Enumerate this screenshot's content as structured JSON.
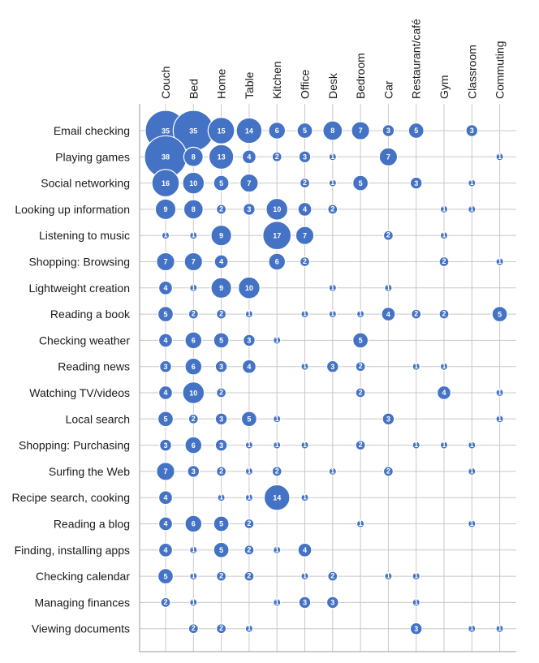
{
  "chart_data": {
    "type": "bubble-matrix",
    "title": "",
    "xlabel": "",
    "ylabel": "",
    "bubble_color": "#4472C4",
    "columns": [
      "Couch",
      "Bed",
      "Home",
      "Table",
      "Kitchen",
      "Office",
      "Desk",
      "Bedroom",
      "Car",
      "Restaurant/café",
      "Gym",
      "Classroom",
      "Commuting"
    ],
    "rows": [
      "Email checking",
      "Playing games",
      "Social networking",
      "Looking up information",
      "Listening to music",
      "Shopping: Browsing",
      "Lightweight creation",
      "Reading a book",
      "Checking weather",
      "Reading news",
      "Watching TV/videos",
      "Local search",
      "Shopping: Purchasing",
      "Surfing the Web",
      "Recipe search, cooking",
      "Reading a blog",
      "Finding, installing apps",
      "Checking calendar",
      "Managing finances",
      "Viewing documents"
    ],
    "values": [
      [
        35,
        35,
        15,
        14,
        6,
        5,
        8,
        7,
        3,
        5,
        null,
        3,
        null
      ],
      [
        38,
        8,
        13,
        4,
        2,
        3,
        1,
        null,
        7,
        null,
        null,
        null,
        1
      ],
      [
        16,
        10,
        5,
        7,
        null,
        2,
        1,
        5,
        null,
        3,
        null,
        1,
        null
      ],
      [
        9,
        8,
        2,
        3,
        10,
        4,
        2,
        null,
        null,
        null,
        1,
        1,
        null
      ],
      [
        1,
        1,
        9,
        null,
        17,
        7,
        null,
        null,
        2,
        null,
        1,
        null,
        null
      ],
      [
        7,
        7,
        4,
        null,
        6,
        2,
        null,
        null,
        null,
        null,
        2,
        null,
        1
      ],
      [
        4,
        1,
        9,
        10,
        null,
        null,
        1,
        null,
        1,
        null,
        null,
        null,
        null
      ],
      [
        5,
        2,
        2,
        1,
        null,
        1,
        1,
        1,
        4,
        2,
        2,
        null,
        5
      ],
      [
        4,
        6,
        5,
        3,
        1,
        null,
        null,
        5,
        null,
        null,
        null,
        null,
        null
      ],
      [
        3,
        6,
        3,
        4,
        null,
        1,
        3,
        2,
        null,
        1,
        1,
        null,
        null
      ],
      [
        4,
        10,
        2,
        null,
        null,
        null,
        null,
        2,
        null,
        null,
        4,
        null,
        1
      ],
      [
        5,
        2,
        3,
        5,
        1,
        null,
        null,
        null,
        3,
        null,
        null,
        null,
        1
      ],
      [
        3,
        6,
        3,
        1,
        1,
        1,
        null,
        2,
        null,
        1,
        1,
        1,
        null
      ],
      [
        7,
        3,
        2,
        1,
        2,
        null,
        1,
        null,
        2,
        null,
        null,
        1,
        null
      ],
      [
        4,
        null,
        1,
        1,
        14,
        1,
        null,
        null,
        null,
        null,
        null,
        null,
        null
      ],
      [
        4,
        6,
        5,
        2,
        null,
        null,
        null,
        1,
        null,
        null,
        null,
        1,
        null
      ],
      [
        4,
        1,
        5,
        2,
        1,
        4,
        null,
        null,
        null,
        null,
        null,
        null,
        null
      ],
      [
        5,
        1,
        2,
        2,
        null,
        1,
        2,
        null,
        1,
        1,
        null,
        null,
        null
      ],
      [
        2,
        1,
        null,
        null,
        1,
        3,
        3,
        null,
        null,
        1,
        null,
        null,
        null
      ],
      [
        null,
        2,
        2,
        1,
        null,
        null,
        null,
        null,
        null,
        3,
        null,
        1,
        1
      ]
    ]
  }
}
